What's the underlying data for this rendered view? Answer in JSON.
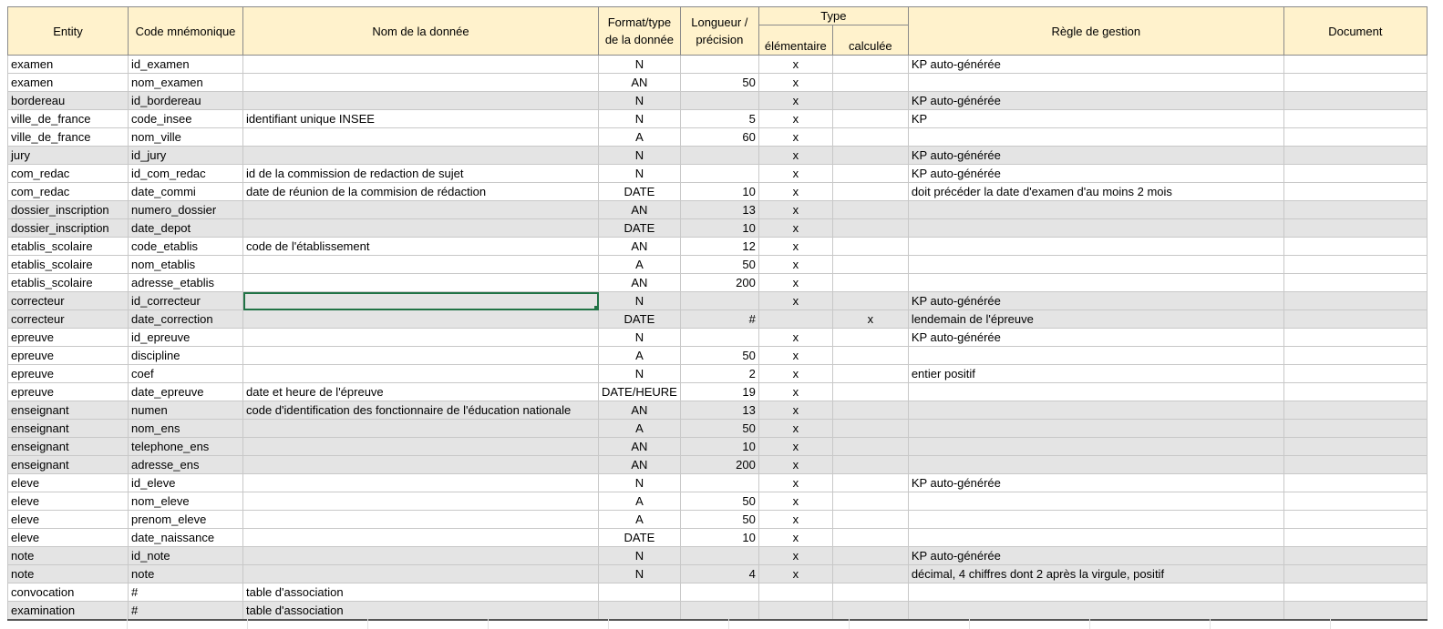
{
  "headers": {
    "entity": "Entity",
    "code": "Code mnémonique",
    "nom": "Nom de la donnée",
    "format": "Format/type de la donnée",
    "longueur": "Longueur / précision",
    "type": "Type",
    "elementaire": "élémentaire",
    "calculee": "calculée",
    "regle": "Règle de gestion",
    "document": "Document"
  },
  "rows": [
    {
      "entity": "examen",
      "code": "id_examen",
      "nom": "",
      "format": "N",
      "longueur": "",
      "elem": "x",
      "calc": "",
      "regle": "KP auto-générée",
      "doc": "",
      "shade": false
    },
    {
      "entity": "examen",
      "code": "nom_examen",
      "nom": "",
      "format": "AN",
      "longueur": "50",
      "elem": "x",
      "calc": "",
      "regle": "",
      "doc": "",
      "shade": false
    },
    {
      "entity": "bordereau",
      "code": "id_bordereau",
      "nom": "",
      "format": "N",
      "longueur": "",
      "elem": "x",
      "calc": "",
      "regle": "KP auto-générée",
      "doc": "",
      "shade": true
    },
    {
      "entity": "ville_de_france",
      "code": "code_insee",
      "nom": "identifiant unique INSEE",
      "format": "N",
      "longueur": "5",
      "elem": "x",
      "calc": "",
      "regle": "KP",
      "doc": "",
      "shade": false
    },
    {
      "entity": "ville_de_france",
      "code": "nom_ville",
      "nom": "",
      "format": "A",
      "longueur": "60",
      "elem": "x",
      "calc": "",
      "regle": "",
      "doc": "",
      "shade": false
    },
    {
      "entity": "jury",
      "code": "id_jury",
      "nom": "",
      "format": "N",
      "longueur": "",
      "elem": "x",
      "calc": "",
      "regle": "KP auto-générée",
      "doc": "",
      "shade": true
    },
    {
      "entity": "com_redac",
      "code": "id_com_redac",
      "nom": "id de la commission de redaction de sujet",
      "format": "N",
      "longueur": "",
      "elem": "x",
      "calc": "",
      "regle": "KP auto-générée",
      "doc": "",
      "shade": false
    },
    {
      "entity": "com_redac",
      "code": "date_commi",
      "nom": "date de réunion de la commision de rédaction",
      "format": "DATE",
      "longueur": "10",
      "elem": "x",
      "calc": "",
      "regle": "doit précéder la date d'examen d'au moins 2 mois",
      "doc": "",
      "shade": false
    },
    {
      "entity": "dossier_inscription",
      "code": "numero_dossier",
      "nom": "",
      "format": "AN",
      "longueur": "13",
      "elem": "x",
      "calc": "",
      "regle": "",
      "doc": "",
      "shade": true
    },
    {
      "entity": "dossier_inscription",
      "code": "date_depot",
      "nom": "",
      "format": "DATE",
      "longueur": "10",
      "elem": "x",
      "calc": "",
      "regle": "",
      "doc": "",
      "shade": true
    },
    {
      "entity": "etablis_scolaire",
      "code": "code_etablis",
      "nom": "code de l'établissement",
      "format": "AN",
      "longueur": "12",
      "elem": "x",
      "calc": "",
      "regle": "",
      "doc": "",
      "shade": false
    },
    {
      "entity": "etablis_scolaire",
      "code": "nom_etablis",
      "nom": "",
      "format": "A",
      "longueur": "50",
      "elem": "x",
      "calc": "",
      "regle": "",
      "doc": "",
      "shade": false
    },
    {
      "entity": "etablis_scolaire",
      "code": "adresse_etablis",
      "nom": "",
      "format": "AN",
      "longueur": "200",
      "elem": "x",
      "calc": "",
      "regle": "",
      "doc": "",
      "shade": false
    },
    {
      "entity": "correcteur",
      "code": "id_correcteur",
      "nom": "",
      "format": "N",
      "longueur": "",
      "elem": "x",
      "calc": "",
      "regle": "KP auto-générée",
      "doc": "",
      "shade": true,
      "selected": true
    },
    {
      "entity": "correcteur",
      "code": "date_correction",
      "nom": "",
      "format": "DATE",
      "longueur": "#",
      "elem": "",
      "calc": "x",
      "regle": "lendemain de l'épreuve",
      "doc": "",
      "shade": true
    },
    {
      "entity": "epreuve",
      "code": "id_epreuve",
      "nom": "",
      "format": "N",
      "longueur": "",
      "elem": "x",
      "calc": "",
      "regle": "KP auto-générée",
      "doc": "",
      "shade": false
    },
    {
      "entity": "epreuve",
      "code": "discipline",
      "nom": "",
      "format": "A",
      "longueur": "50",
      "elem": "x",
      "calc": "",
      "regle": "",
      "doc": "",
      "shade": false
    },
    {
      "entity": "epreuve",
      "code": "coef",
      "nom": "",
      "format": "N",
      "longueur": "2",
      "elem": "x",
      "calc": "",
      "regle": "entier positif",
      "doc": "",
      "shade": false
    },
    {
      "entity": "epreuve",
      "code": "date_epreuve",
      "nom": "date et heure de l'épreuve",
      "format": "DATE/HEURE",
      "longueur": "19",
      "elem": "x",
      "calc": "",
      "regle": "",
      "doc": "",
      "shade": false
    },
    {
      "entity": "enseignant",
      "code": "numen",
      "nom": "code d'identification des fonctionnaire de l'éducation nationale",
      "format": "AN",
      "longueur": "13",
      "elem": "x",
      "calc": "",
      "regle": "",
      "doc": "",
      "shade": true
    },
    {
      "entity": "enseignant",
      "code": "nom_ens",
      "nom": "",
      "format": "A",
      "longueur": "50",
      "elem": "x",
      "calc": "",
      "regle": "",
      "doc": "",
      "shade": true
    },
    {
      "entity": "enseignant",
      "code": "telephone_ens",
      "nom": "",
      "format": "AN",
      "longueur": "10",
      "elem": "x",
      "calc": "",
      "regle": "",
      "doc": "",
      "shade": true
    },
    {
      "entity": "enseignant",
      "code": "adresse_ens",
      "nom": "",
      "format": "AN",
      "longueur": "200",
      "elem": "x",
      "calc": "",
      "regle": "",
      "doc": "",
      "shade": true
    },
    {
      "entity": "eleve",
      "code": "id_eleve",
      "nom": "",
      "format": "N",
      "longueur": "",
      "elem": "x",
      "calc": "",
      "regle": "KP auto-générée",
      "doc": "",
      "shade": false
    },
    {
      "entity": "eleve",
      "code": "nom_eleve",
      "nom": "",
      "format": "A",
      "longueur": "50",
      "elem": "x",
      "calc": "",
      "regle": "",
      "doc": "",
      "shade": false
    },
    {
      "entity": "eleve",
      "code": "prenom_eleve",
      "nom": "",
      "format": "A",
      "longueur": "50",
      "elem": "x",
      "calc": "",
      "regle": "",
      "doc": "",
      "shade": false
    },
    {
      "entity": "eleve",
      "code": "date_naissance",
      "nom": "",
      "format": "DATE",
      "longueur": "10",
      "elem": "x",
      "calc": "",
      "regle": "",
      "doc": "",
      "shade": false
    },
    {
      "entity": "note",
      "code": "id_note",
      "nom": "",
      "format": "N",
      "longueur": "",
      "elem": "x",
      "calc": "",
      "regle": "KP auto-générée",
      "doc": "",
      "shade": true
    },
    {
      "entity": "note",
      "code": "note",
      "nom": "",
      "format": "N",
      "longueur": "4",
      "elem": "x",
      "calc": "",
      "regle": "décimal, 4 chiffres dont 2 après la virgule, positif",
      "doc": "",
      "shade": true
    },
    {
      "entity": "convocation",
      "code": "#",
      "nom": "table d'association",
      "format": "",
      "longueur": "",
      "elem": "",
      "calc": "",
      "regle": "",
      "doc": "",
      "shade": false
    },
    {
      "entity": "examination",
      "code": "#",
      "nom": "table d'association",
      "format": "",
      "longueur": "",
      "elem": "",
      "calc": "",
      "regle": "",
      "doc": "",
      "shade": true
    }
  ]
}
